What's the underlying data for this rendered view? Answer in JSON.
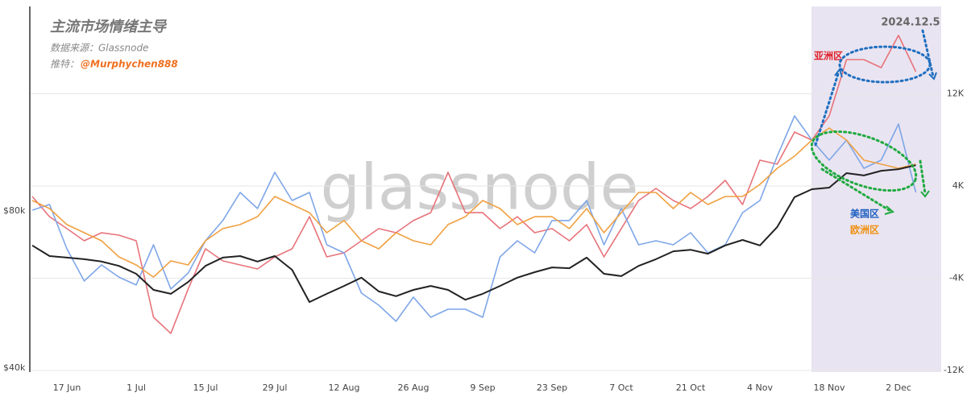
{
  "chart_data": {
    "type": "line",
    "title": "主流市场情绪主导",
    "source": "数据来源：Glassnode",
    "twitter_label": "推特：",
    "twitter_handle": "@Murphychen888",
    "watermark": "glassnode",
    "date_annotation": "2024.12.5",
    "categories": [
      null,
      null,
      "17 Jun",
      null,
      null,
      null,
      "1 Jul",
      null,
      null,
      null,
      "15 Jul",
      null,
      null,
      null,
      "29 Jul",
      null,
      null,
      null,
      "12 Aug",
      null,
      null,
      null,
      "26 Aug",
      null,
      null,
      null,
      "9 Sep",
      null,
      null,
      null,
      "23 Sep",
      null,
      null,
      null,
      "7 Oct",
      null,
      null,
      null,
      "21 Oct",
      null,
      null,
      null,
      "4 Nov",
      null,
      null,
      null,
      "18 Nov",
      null,
      null,
      null,
      "2 Dec",
      null
    ],
    "ylim": [
      39000,
      132000
    ],
    "yticks": [
      {
        "value": 40000,
        "label": "$40k"
      },
      {
        "value": 80000,
        "label": "$80k"
      }
    ],
    "y2lim": [
      -12140,
      19580
    ],
    "y2ticks": [
      {
        "value": -12000,
        "label": "-12K"
      },
      {
        "value": -4000,
        "label": "-4K"
      },
      {
        "value": 4000,
        "label": "4K"
      },
      {
        "value": 12000,
        "label": "12K"
      }
    ],
    "grid": true,
    "series": [
      {
        "color": "#222222",
        "values": [
          71200,
          68500,
          68100,
          67700,
          67100,
          66000,
          64000,
          59900,
          58900,
          61900,
          66000,
          68100,
          68500,
          67100,
          68500,
          65000,
          56800,
          58900,
          60900,
          63000,
          59500,
          58300,
          59900,
          60900,
          59900,
          57400,
          58900,
          60900,
          63000,
          64400,
          65600,
          65400,
          68100,
          64000,
          63400,
          66000,
          67700,
          69700,
          70100,
          69100,
          71200,
          72600,
          71200,
          75900,
          83500,
          85500,
          85900,
          89600,
          89000,
          90200,
          90600,
          91600
        ]
      },
      {
        "name": "亚洲区",
        "axis": "y2",
        "color": "#e8737a",
        "values": [
          3090,
          1340,
          300,
          -750,
          -50,
          -260,
          -750,
          -7390,
          -8790,
          -4940,
          -1450,
          -2500,
          -2850,
          -3200,
          -2150,
          -1450,
          1340,
          -2150,
          -1800,
          -750,
          300,
          -50,
          1000,
          1690,
          5190,
          1690,
          1690,
          300,
          1340,
          -50,
          300,
          -750,
          650,
          -2150,
          300,
          2740,
          3790,
          2740,
          2040,
          3090,
          4490,
          2390,
          6240,
          5890,
          8680,
          7980,
          10080,
          14970,
          14970,
          14270,
          17070,
          13920
        ]
      },
      {
        "name": "美国区",
        "axis": "y2",
        "color": "#7ea6e8",
        "values": [
          1900,
          2390,
          -1450,
          -4240,
          -2850,
          -3900,
          -4590,
          -1100,
          -4940,
          -3550,
          -750,
          1000,
          3440,
          2040,
          5190,
          2740,
          3440,
          -1100,
          -1800,
          -5290,
          -6340,
          -7740,
          -5640,
          -7390,
          -6690,
          -6690,
          -7390,
          -2150,
          -750,
          -1800,
          1000,
          1000,
          2740,
          -1100,
          2040,
          -1100,
          -750,
          -1100,
          -50,
          -1800,
          -1100,
          1690,
          2740,
          6590,
          10080,
          7980,
          6240,
          7980,
          5540,
          6240,
          9380,
          3440
        ]
      },
      {
        "name": "欧洲区",
        "axis": "y2",
        "color": "#f0a040",
        "values": [
          2740,
          2040,
          650,
          -50,
          -750,
          -2150,
          -2850,
          -3900,
          -2500,
          -2850,
          -750,
          300,
          650,
          1340,
          3090,
          2390,
          1690,
          -50,
          1000,
          -750,
          -1450,
          -50,
          -750,
          -1100,
          650,
          1340,
          2740,
          2040,
          650,
          1340,
          1340,
          300,
          2040,
          -50,
          1690,
          3440,
          3440,
          2040,
          3440,
          2390,
          3090,
          3090,
          4140,
          5540,
          6590,
          7980,
          9030,
          7980,
          6240,
          5890,
          5540,
          5890
        ]
      }
    ]
  }
}
